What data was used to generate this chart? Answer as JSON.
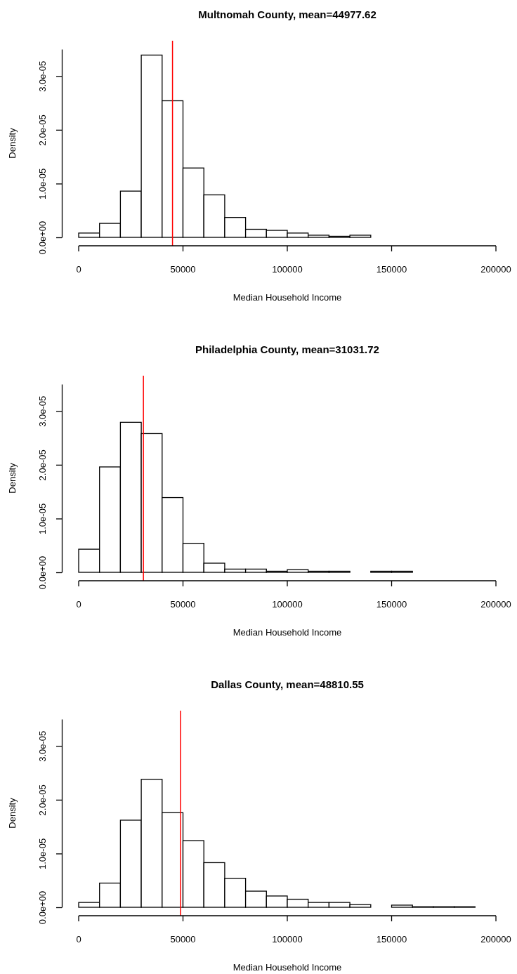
{
  "chart_data": [
    {
      "type": "histogram",
      "title": "Multnomah County, mean=44977.62",
      "xlabel": "Median Household Income",
      "ylabel": "Density",
      "color": "#ffffff",
      "bins": [
        0,
        10000,
        20000,
        30000,
        40000,
        50000,
        60000,
        70000,
        80000,
        90000,
        100000,
        110000,
        120000,
        130000,
        140000,
        150000,
        160000,
        170000,
        180000,
        190000,
        200000
      ],
      "values": [
        8e-07,
        2.6e-06,
        8.6e-06,
        3.39e-05,
        2.54e-05,
        1.29e-05,
        7.9e-06,
        3.7e-06,
        1.5e-06,
        1.3e-06,
        8e-07,
        4e-07,
        2e-07,
        4e-07,
        0,
        0,
        0,
        0,
        0,
        0
      ],
      "xlim": [
        0,
        200000
      ],
      "xticks": [
        0,
        50000,
        100000,
        150000,
        200000
      ],
      "ylim": [
        0,
        3.5e-05
      ],
      "yticks": [
        {
          "value": 0,
          "label": "0.0e+00"
        },
        {
          "value": 1e-05,
          "label": "1.0e-05"
        },
        {
          "value": 2e-05,
          "label": "2.0e-05"
        },
        {
          "value": 3e-05,
          "label": "3.0e-05"
        }
      ],
      "ref_lines": [
        {
          "axis": "x",
          "value": 44977.62,
          "color": "#ff0000"
        }
      ]
    },
    {
      "type": "histogram",
      "title": "Philadelphia County, mean=31031.72",
      "xlabel": "Median Household Income",
      "ylabel": "Density",
      "color": "#ffffff",
      "bins": [
        0,
        10000,
        20000,
        30000,
        40000,
        50000,
        60000,
        70000,
        80000,
        90000,
        100000,
        110000,
        120000,
        130000,
        140000,
        150000,
        160000,
        170000,
        180000,
        190000,
        200000
      ],
      "values": [
        4.3e-06,
        1.96e-05,
        2.79e-05,
        2.58e-05,
        1.39e-05,
        5.4e-06,
        1.7e-06,
        6e-07,
        6e-07,
        2e-07,
        5e-07,
        2e-07,
        2e-07,
        0,
        2e-07,
        2e-07,
        0,
        0,
        0,
        0
      ],
      "xlim": [
        0,
        200000
      ],
      "xticks": [
        0,
        50000,
        100000,
        150000,
        200000
      ],
      "ylim": [
        0,
        3.5e-05
      ],
      "yticks": [
        {
          "value": 0,
          "label": "0.0e+00"
        },
        {
          "value": 1e-05,
          "label": "1.0e-05"
        },
        {
          "value": 2e-05,
          "label": "2.0e-05"
        },
        {
          "value": 3e-05,
          "label": "3.0e-05"
        }
      ],
      "ref_lines": [
        {
          "axis": "x",
          "value": 31031.72,
          "color": "#ff0000"
        }
      ]
    },
    {
      "type": "histogram",
      "title": "Dallas County, mean=48810.55",
      "xlabel": "Median Household Income",
      "ylabel": "Density",
      "color": "#ffffff",
      "bins": [
        0,
        10000,
        20000,
        30000,
        40000,
        50000,
        60000,
        70000,
        80000,
        90000,
        100000,
        110000,
        120000,
        130000,
        140000,
        150000,
        160000,
        170000,
        180000,
        190000,
        200000
      ],
      "values": [
        9e-07,
        4.5e-06,
        1.62e-05,
        2.38e-05,
        1.76e-05,
        1.24e-05,
        8.3e-06,
        5.4e-06,
        3e-06,
        2.1e-06,
        1.5e-06,
        9e-07,
        9e-07,
        5e-07,
        0,
        4e-07,
        1e-07,
        1e-07,
        1e-07,
        0
      ],
      "xlim": [
        0,
        200000
      ],
      "xticks": [
        0,
        50000,
        100000,
        150000,
        200000
      ],
      "ylim": [
        0,
        3.5e-05
      ],
      "yticks": [
        {
          "value": 0,
          "label": "0.0e+00"
        },
        {
          "value": 1e-05,
          "label": "1.0e-05"
        },
        {
          "value": 2e-05,
          "label": "2.0e-05"
        },
        {
          "value": 3e-05,
          "label": "3.0e-05"
        }
      ],
      "ref_lines": [
        {
          "axis": "x",
          "value": 48810.55,
          "color": "#ff0000"
        }
      ]
    }
  ]
}
